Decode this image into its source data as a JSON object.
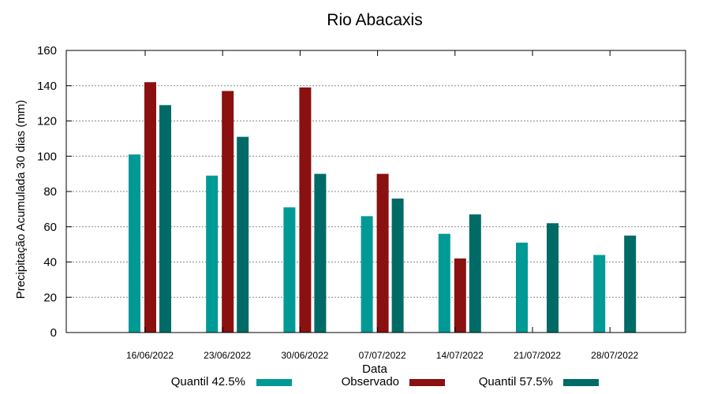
{
  "chart_data": {
    "type": "bar",
    "title": "Rio Abacaxis",
    "xlabel": "Data",
    "ylabel": "Precipitação Acumulada 30 dias (mm)",
    "ylim": [
      0,
      160
    ],
    "yticks": [
      0,
      20,
      40,
      60,
      80,
      100,
      120,
      140,
      160
    ],
    "grid": true,
    "legend_placement": "bottom",
    "categories": [
      "16/06/2022",
      "23/06/2022",
      "30/06/2022",
      "07/07/2022",
      "14/07/2022",
      "21/07/2022",
      "28/07/2022"
    ],
    "series": [
      {
        "name": "Quantil 42.5%",
        "color": "#009a96",
        "values": [
          101,
          89,
          71,
          66,
          56,
          51,
          44
        ]
      },
      {
        "name": "Observado",
        "color": "#8b1010",
        "values": [
          142,
          137,
          139,
          90,
          42,
          null,
          null
        ]
      },
      {
        "name": "Quantil 57.5%",
        "color": "#006b66",
        "values": [
          129,
          111,
          90,
          76,
          67,
          62,
          55
        ]
      }
    ]
  }
}
